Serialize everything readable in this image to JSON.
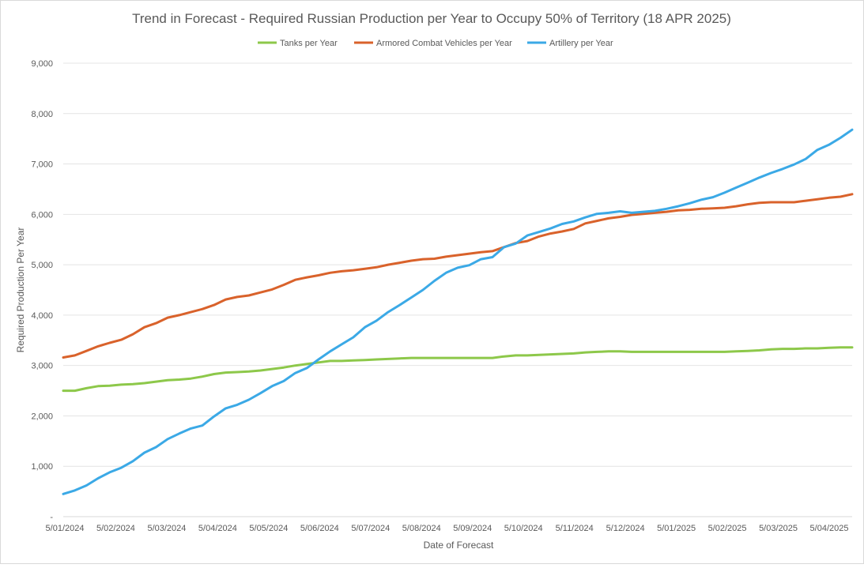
{
  "chart_data": {
    "type": "line",
    "title": "Trend in Forecast - Required Russian Production per Year to Occupy 50% of Territory (18 APR 2025)",
    "xlabel": "Date of Forecast",
    "ylabel": "Required Production Per Year",
    "ylim": [
      0,
      9000
    ],
    "y_ticks": [
      "-",
      "1,000",
      "2,000",
      "3,000",
      "4,000",
      "5,000",
      "6,000",
      "7,000",
      "8,000",
      "9,000"
    ],
    "x_ticks": [
      "5/01/2024",
      "5/02/2024",
      "5/03/2024",
      "5/04/2024",
      "5/05/2024",
      "5/06/2024",
      "5/07/2024",
      "5/08/2024",
      "5/09/2024",
      "5/10/2024",
      "5/11/2024",
      "5/12/2024",
      "5/01/2025",
      "5/02/2025",
      "5/03/2025",
      "5/04/2025"
    ],
    "x_range_weeks": [
      0,
      68
    ],
    "grid": true,
    "legend_position": "top",
    "series": [
      {
        "name": "Tanks per Year",
        "color": "#8DC84A",
        "weeks": [
          0,
          1,
          2,
          3,
          4,
          5,
          6,
          7,
          8,
          9,
          10,
          11,
          12,
          13,
          14,
          15,
          16,
          17,
          18,
          19,
          20,
          21,
          22,
          23,
          24,
          25,
          26,
          27,
          28,
          29,
          30,
          31,
          32,
          33,
          34,
          35,
          36,
          37,
          38,
          39,
          40,
          41,
          42,
          43,
          44,
          45,
          46,
          47,
          48,
          49,
          50,
          51,
          52,
          53,
          54,
          55,
          56,
          57,
          58,
          59,
          60,
          61,
          62,
          63,
          64,
          65,
          66,
          67,
          68
        ],
        "values": [
          2500,
          2500,
          2550,
          2590,
          2600,
          2620,
          2630,
          2650,
          2680,
          2710,
          2720,
          2740,
          2780,
          2830,
          2860,
          2870,
          2880,
          2900,
          2930,
          2960,
          3000,
          3030,
          3060,
          3090,
          3090,
          3100,
          3110,
          3120,
          3130,
          3140,
          3150,
          3150,
          3150,
          3150,
          3150,
          3150,
          3150,
          3150,
          3180,
          3200,
          3200,
          3210,
          3220,
          3230,
          3240,
          3260,
          3270,
          3280,
          3280,
          3270,
          3270,
          3270,
          3270,
          3270,
          3270,
          3270,
          3270,
          3270,
          3280,
          3290,
          3300,
          3320,
          3330,
          3330,
          3340,
          3340,
          3350,
          3360,
          3360
        ]
      },
      {
        "name": "Armored Combat Vehicles per Year",
        "color": "#D9622B",
        "weeks": [
          0,
          1,
          2,
          3,
          4,
          5,
          6,
          7,
          8,
          9,
          10,
          11,
          12,
          13,
          14,
          15,
          16,
          17,
          18,
          19,
          20,
          21,
          22,
          23,
          24,
          25,
          26,
          27,
          28,
          29,
          30,
          31,
          32,
          33,
          34,
          35,
          36,
          37,
          38,
          39,
          40,
          41,
          42,
          43,
          44,
          45,
          46,
          47,
          48,
          49,
          50,
          51,
          52,
          53,
          54,
          55,
          56,
          57,
          58,
          59,
          60,
          61,
          62,
          63,
          64,
          65,
          66,
          67,
          68
        ],
        "values": [
          3160,
          3200,
          3290,
          3380,
          3450,
          3510,
          3620,
          3760,
          3840,
          3950,
          4000,
          4060,
          4120,
          4200,
          4310,
          4360,
          4390,
          4450,
          4510,
          4600,
          4700,
          4750,
          4790,
          4840,
          4870,
          4890,
          4920,
          4950,
          5000,
          5040,
          5080,
          5110,
          5120,
          5160,
          5190,
          5220,
          5250,
          5270,
          5350,
          5430,
          5470,
          5560,
          5620,
          5660,
          5710,
          5820,
          5870,
          5920,
          5950,
          5990,
          6010,
          6030,
          6050,
          6080,
          6090,
          6110,
          6120,
          6130,
          6160,
          6200,
          6230,
          6240,
          6240,
          6240,
          6270,
          6300,
          6330,
          6350,
          6400
        ]
      },
      {
        "name": "Artillery per Year",
        "color": "#3BA9E6",
        "weeks": [
          0,
          1,
          2,
          3,
          4,
          5,
          6,
          7,
          8,
          9,
          10,
          11,
          12,
          13,
          14,
          15,
          16,
          17,
          18,
          19,
          20,
          21,
          22,
          23,
          24,
          25,
          26,
          27,
          28,
          29,
          30,
          31,
          32,
          33,
          34,
          35,
          36,
          37,
          38,
          39,
          40,
          41,
          42,
          43,
          44,
          45,
          46,
          47,
          48,
          49,
          50,
          51,
          52,
          53,
          54,
          55,
          56,
          57,
          58,
          59,
          60,
          61,
          62,
          63,
          64,
          65,
          66,
          67,
          68
        ],
        "values": [
          450,
          520,
          620,
          760,
          880,
          970,
          1100,
          1270,
          1380,
          1540,
          1650,
          1750,
          1810,
          1990,
          2150,
          2220,
          2320,
          2450,
          2590,
          2690,
          2850,
          2950,
          3120,
          3280,
          3420,
          3560,
          3760,
          3890,
          4060,
          4200,
          4350,
          4500,
          4680,
          4840,
          4940,
          4990,
          5110,
          5150,
          5350,
          5420,
          5580,
          5650,
          5720,
          5810,
          5860,
          5940,
          6010,
          6030,
          6060,
          6030,
          6050,
          6070,
          6110,
          6160,
          6220,
          6290,
          6340,
          6430,
          6530,
          6630,
          6730,
          6820,
          6900,
          6990,
          7100,
          7280,
          7380,
          7520,
          7680
        ]
      }
    ]
  }
}
